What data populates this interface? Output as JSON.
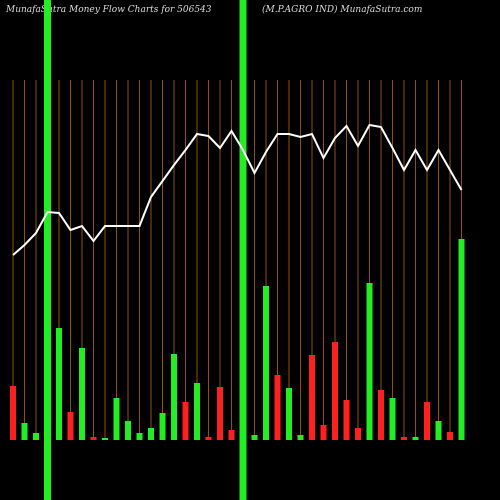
{
  "chart_data": {
    "type": "bar-line",
    "title": "MunafaSutra  Money Flow  Charts for 506543",
    "subtitle": "(M.P.AGRO IND) MunafaSutra.com",
    "categories": [
      null,
      null,
      null,
      null,
      null,
      null,
      null,
      null,
      null,
      null,
      null,
      null,
      null,
      null,
      null,
      null,
      null,
      null,
      null,
      null,
      null,
      null,
      null,
      null,
      null,
      null,
      null,
      null,
      null,
      null,
      null,
      null,
      null,
      null,
      null,
      null,
      null,
      null,
      null,
      null
    ],
    "series": [
      {
        "kind": "bar",
        "colors": [
          "#ff2020",
          "#22ee22",
          "#22ee22",
          null,
          "#22ee22",
          "#ff2020",
          "#22ee22",
          "#ff2020",
          "#22ee22",
          "#22ee22",
          "#22ee22",
          "#22ee22",
          "#22ee22",
          "#22ee22",
          "#22ee22",
          "#ff2020",
          "#22ee22",
          "#ff2020",
          "#ff2020",
          "#ff2020",
          null,
          "#22ee22",
          "#22ee22",
          "#ff2020",
          "#22ee22",
          "#22ee22",
          "#ff2020",
          "#ff2020",
          "#ff2020",
          "#ff2020",
          "#ff2020",
          "#22ee22",
          "#ff2020",
          "#22ee22",
          "#ff2020",
          "#22ee22",
          "#ff2020",
          "#22ee22",
          "#ff2020",
          "#22ee22"
        ],
        "values": [
          54,
          17,
          7,
          null,
          112,
          28,
          92,
          3,
          2,
          42,
          19,
          7,
          12,
          27,
          86,
          38,
          57,
          3,
          53,
          10,
          null,
          5,
          154,
          65,
          52,
          5,
          85,
          15,
          98,
          40,
          12,
          157,
          50,
          42,
          3,
          3,
          38,
          19,
          8,
          201
        ]
      },
      {
        "kind": "line",
        "color": "#ffffff",
        "values": [
          185,
          195,
          207,
          228,
          227,
          210,
          214,
          199,
          214,
          214,
          214,
          214,
          243,
          259,
          275,
          290,
          306,
          304,
          292,
          309,
          290,
          267,
          288,
          306,
          306,
          303,
          306,
          282,
          302,
          314,
          294,
          315,
          313,
          292,
          270,
          290,
          270,
          290,
          270,
          250
        ]
      }
    ],
    "highlights": [
      3,
      20
    ],
    "highlight_color": "#22ee22",
    "grid_color": "#b8650a",
    "ylim": [
      0,
      440
    ]
  }
}
